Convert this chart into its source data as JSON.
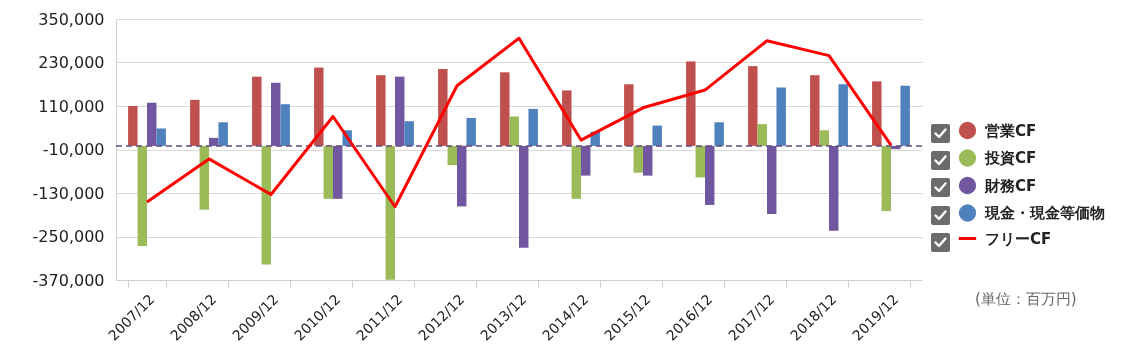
{
  "chart_data": {
    "type": "bar",
    "categories": [
      "2007/12",
      "2008/12",
      "2009/12",
      "2010/12",
      "2011/12",
      "2012/12",
      "2013/12",
      "2014/12",
      "2015/12",
      "2016/12",
      "2017/12",
      "2018/12",
      "2019/12"
    ],
    "series": [
      {
        "name": "営業CF",
        "color": "#c0504d",
        "values": [
          110000,
          127000,
          191000,
          216000,
          195000,
          212000,
          203000,
          153000,
          170000,
          233000,
          220000,
          195000,
          178000
        ]
      },
      {
        "name": "投資CF",
        "color": "#9bbb59",
        "values": [
          -276000,
          -176000,
          -327000,
          -146000,
          -369000,
          -53000,
          81000,
          -146000,
          -74000,
          -87000,
          60000,
          43000,
          -180000
        ]
      },
      {
        "name": "財務CF",
        "color": "#7057a0",
        "values": [
          119000,
          22000,
          174000,
          -146000,
          191000,
          -167000,
          -281000,
          -82000,
          -82000,
          -163000,
          -188000,
          -234000,
          -9000
        ]
      },
      {
        "name": "現金・現金等価物",
        "color": "#4f81bd",
        "values": [
          48000,
          65000,
          115000,
          43000,
          68000,
          77000,
          102000,
          39000,
          56000,
          65000,
          161000,
          170000,
          166000
        ]
      },
      {
        "name": "フリーCF",
        "type": "line",
        "color": "#ff0000",
        "values": [
          -155000,
          -36000,
          -134000,
          81000,
          -168000,
          166000,
          297000,
          16000,
          105000,
          154000,
          290000,
          249000,
          2000
        ]
      }
    ],
    "ylim": [
      -370000,
      350000
    ],
    "yticks": [
      {
        "value": -370000,
        "label": "-370,000"
      },
      {
        "value": -250000,
        "label": "-250,000"
      },
      {
        "value": -130000,
        "label": "-130,000"
      },
      {
        "value": -10000,
        "label": "-10,000"
      },
      {
        "value": 110000,
        "label": "110,000"
      },
      {
        "value": 230000,
        "label": "230,000"
      },
      {
        "value": 350000,
        "label": "350,000"
      }
    ],
    "grid": "y",
    "legend": "right",
    "ref_lines": [
      {
        "axis": "y",
        "value": 0,
        "color": "#604a7b",
        "line_style": "dashed"
      }
    ],
    "annotations": [
      "(単位：百万円)"
    ]
  }
}
